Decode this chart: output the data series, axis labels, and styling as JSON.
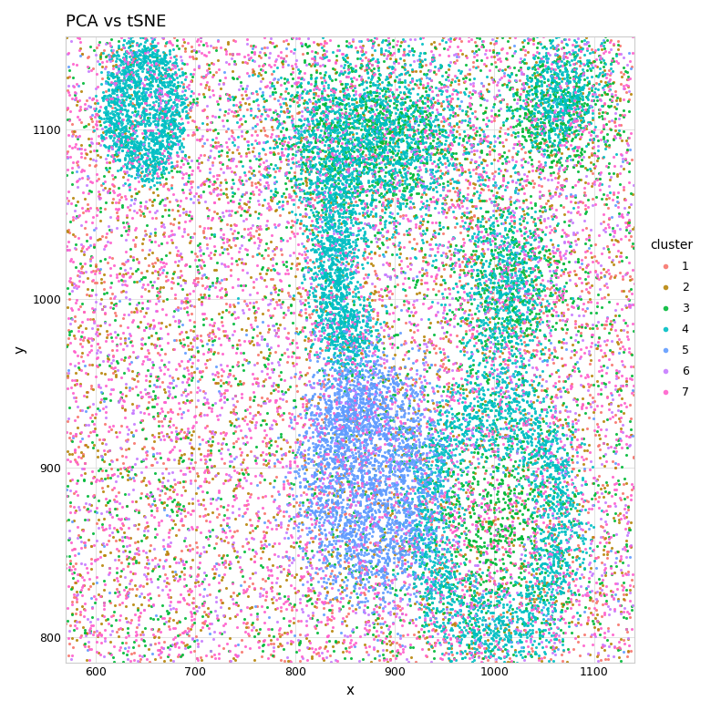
{
  "title": "PCA vs tSNE",
  "xlabel": "x",
  "ylabel": "y",
  "xlim": [
    570,
    1140
  ],
  "ylim": [
    785,
    1155
  ],
  "xticks": [
    600,
    700,
    800,
    900,
    1000,
    1100
  ],
  "yticks": [
    800,
    900,
    1000,
    1100
  ],
  "cluster_colors": {
    "1": "#F8766D",
    "2": "#B8860B",
    "3": "#00BA38",
    "4": "#00BFC4",
    "5": "#619CFF",
    "6": "#C77CFF",
    "7": "#FF61CC"
  },
  "legend_title": "cluster",
  "point_size": 5,
  "alpha": 0.9,
  "background_color": "#FFFFFF",
  "grid_color": "#DDDDDD",
  "figsize": [
    7.8,
    7.8
  ],
  "dpi": 100
}
